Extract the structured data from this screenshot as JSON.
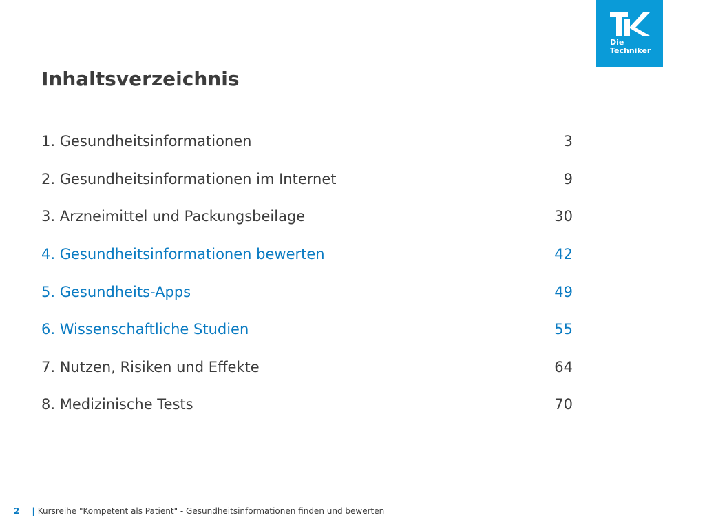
{
  "logo": {
    "text": "Die\nTechniker",
    "color": "#0a9bd8"
  },
  "title": "Inhaltsverzeichnis",
  "toc": [
    {
      "label": "1. Gesundheitsinformationen",
      "page": "3",
      "highlight": false
    },
    {
      "label": "2. Gesundheitsinformationen im Internet",
      "page": "9",
      "highlight": false
    },
    {
      "label": "3. Arzneimittel und Packungsbeilage",
      "page": "30",
      "highlight": false
    },
    {
      "label": "4. Gesundheitsinformationen bewerten",
      "page": "42",
      "highlight": true
    },
    {
      "label": "5. Gesundheits-Apps",
      "page": "49",
      "highlight": true
    },
    {
      "label": "6. Wissenschaftliche Studien",
      "page": "55",
      "highlight": true
    },
    {
      "label": "7. Nutzen, Risiken und Effekte",
      "page": "64",
      "highlight": false
    },
    {
      "label": "8. Medizinische Tests",
      "page": "70",
      "highlight": false
    }
  ],
  "footer": {
    "page_number": "2",
    "separator": "|",
    "text": "Kursreihe \"Kompetent als Patient\" - Gesundheitsinformationen finden und bewerten"
  },
  "colors": {
    "accent": "#0a7bc2",
    "text": "#3c3c3c"
  }
}
